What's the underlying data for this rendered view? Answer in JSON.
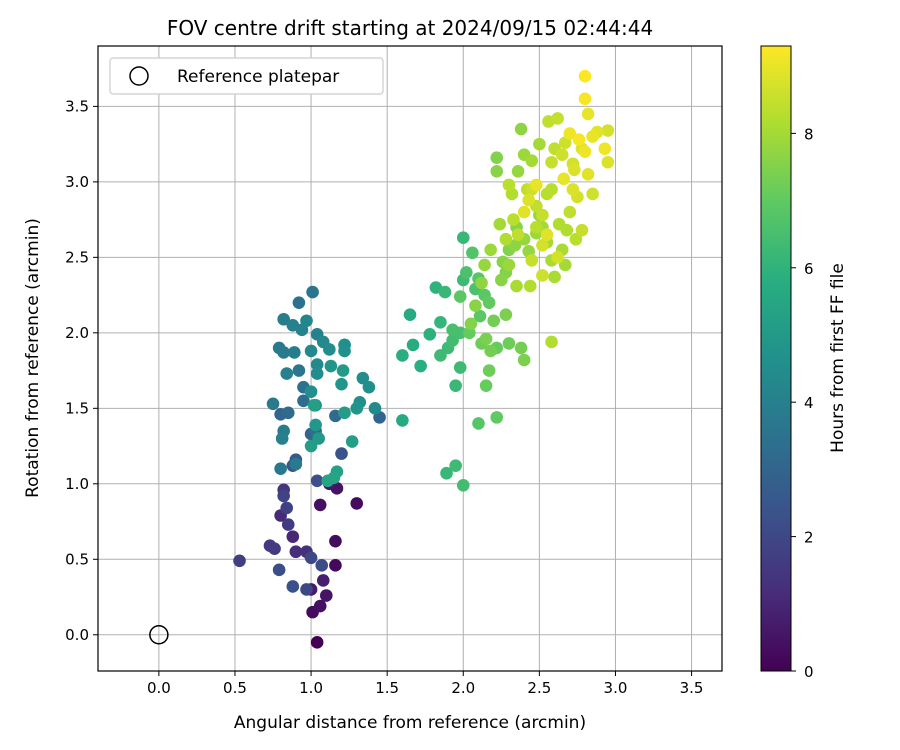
{
  "chart_data": {
    "type": "scatter",
    "title": "FOV centre drift starting at 2024/09/15 02:44:44",
    "xlabel": "Angular distance from reference (arcmin)",
    "ylabel": "Rotation from reference (arcmin)",
    "xlim": [
      -0.4,
      3.7
    ],
    "ylim": [
      -0.24,
      3.9
    ],
    "x_ticks": [
      0.0,
      0.5,
      1.0,
      1.5,
      2.0,
      2.5,
      3.0,
      3.5
    ],
    "x_tick_labels": [
      "0.0",
      "0.5",
      "1.0",
      "1.5",
      "2.0",
      "2.5",
      "3.0",
      "3.5"
    ],
    "y_ticks": [
      0.0,
      0.5,
      1.0,
      1.5,
      2.0,
      2.5,
      3.0,
      3.5
    ],
    "y_tick_labels": [
      "0.0",
      "0.5",
      "1.0",
      "1.5",
      "2.0",
      "2.5",
      "3.0",
      "3.5"
    ],
    "grid": true,
    "legend": {
      "position": "top-left",
      "entries": [
        "Reference platepar"
      ]
    },
    "reference_point": {
      "x": 0.0,
      "y": 0.0,
      "label": "Reference platepar"
    },
    "colorbar": {
      "label": "Hours from first FF file",
      "colormap": "viridis",
      "range": [
        0,
        9.3
      ],
      "ticks": [
        0,
        2,
        4,
        6,
        8
      ],
      "tick_labels": [
        "0",
        "2",
        "4",
        "6",
        "8"
      ]
    },
    "point_fields": [
      "x",
      "y",
      "hours"
    ],
    "points": [
      [
        1.04,
        -0.05,
        0.0
      ],
      [
        1.01,
        0.15,
        0.3
      ],
      [
        1.06,
        0.19,
        0.4
      ],
      [
        1.1,
        0.26,
        0.5
      ],
      [
        1.0,
        0.3,
        0.7
      ],
      [
        1.08,
        0.36,
        0.8
      ],
      [
        1.16,
        0.46,
        0.2
      ],
      [
        1.16,
        0.62,
        0.3
      ],
      [
        1.06,
        0.86,
        0.4
      ],
      [
        1.17,
        0.97,
        0.5
      ],
      [
        1.3,
        0.87,
        0.3
      ],
      [
        1.12,
        1.0,
        0.6
      ],
      [
        0.88,
        0.65,
        1.0
      ],
      [
        0.9,
        0.55,
        1.2
      ],
      [
        0.97,
        0.55,
        1.3
      ],
      [
        0.8,
        0.79,
        1.1
      ],
      [
        0.82,
        0.96,
        1.4
      ],
      [
        0.73,
        0.59,
        1.5
      ],
      [
        0.76,
        0.57,
        1.6
      ],
      [
        0.53,
        0.49,
        1.7
      ],
      [
        0.85,
        0.73,
        1.6
      ],
      [
        0.84,
        0.84,
        1.8
      ],
      [
        0.82,
        0.92,
        1.9
      ],
      [
        1.0,
        0.51,
        2.0
      ],
      [
        1.07,
        0.46,
        2.1
      ],
      [
        0.97,
        0.3,
        2.0
      ],
      [
        0.79,
        0.43,
        2.2
      ],
      [
        0.88,
        0.32,
        2.3
      ],
      [
        1.04,
        1.02,
        2.3
      ],
      [
        1.2,
        1.2,
        2.4
      ],
      [
        0.88,
        1.12,
        2.5
      ],
      [
        0.9,
        1.16,
        2.6
      ],
      [
        0.8,
        1.46,
        3.0
      ],
      [
        0.85,
        1.47,
        3.2
      ],
      [
        0.95,
        1.55,
        3.3
      ],
      [
        1.0,
        1.33,
        3.0
      ],
      [
        1.03,
        1.35,
        3.4
      ],
      [
        1.16,
        1.45,
        3.2
      ],
      [
        1.45,
        1.44,
        3.0
      ],
      [
        0.95,
        1.64,
        3.5
      ],
      [
        0.92,
        1.75,
        3.6
      ],
      [
        0.79,
        1.9,
        3.7
      ],
      [
        0.82,
        1.87,
        3.8
      ],
      [
        0.89,
        1.87,
        3.9
      ],
      [
        0.82,
        2.09,
        3.9
      ],
      [
        0.92,
        2.2,
        3.5
      ],
      [
        1.01,
        2.27,
        3.6
      ],
      [
        0.88,
        2.05,
        4.0
      ],
      [
        0.94,
        2.02,
        4.1
      ],
      [
        0.97,
        2.08,
        4.2
      ],
      [
        1.04,
        1.99,
        4.0
      ],
      [
        1.08,
        1.94,
        4.3
      ],
      [
        1.0,
        1.88,
        4.3
      ],
      [
        1.04,
        1.79,
        4.4
      ],
      [
        1.04,
        1.73,
        4.5
      ],
      [
        1.12,
        1.89,
        4.5
      ],
      [
        1.22,
        1.92,
        4.6
      ],
      [
        1.22,
        1.88,
        4.7
      ],
      [
        0.84,
        1.73,
        4.0
      ],
      [
        1.0,
        1.61,
        4.6
      ],
      [
        1.03,
        1.52,
        4.7
      ],
      [
        0.75,
        1.53,
        3.8
      ],
      [
        0.82,
        1.35,
        3.9
      ],
      [
        0.81,
        1.3,
        4.0
      ],
      [
        0.8,
        1.1,
        3.7
      ],
      [
        0.9,
        1.13,
        3.8
      ],
      [
        1.03,
        1.39,
        4.9
      ],
      [
        1.05,
        1.3,
        5.0
      ],
      [
        1.0,
        1.25,
        5.1
      ],
      [
        1.02,
        1.52,
        5.2
      ],
      [
        1.2,
        1.66,
        4.8
      ],
      [
        1.21,
        1.75,
        5.0
      ],
      [
        1.34,
        1.7,
        4.5
      ],
      [
        1.38,
        1.64,
        4.6
      ],
      [
        1.42,
        1.5,
        4.4
      ],
      [
        1.32,
        1.54,
        4.6
      ],
      [
        1.3,
        1.5,
        4.8
      ],
      [
        1.22,
        1.47,
        5.1
      ],
      [
        1.27,
        1.28,
        5.2
      ],
      [
        1.17,
        1.08,
        5.3
      ],
      [
        1.11,
        1.02,
        5.4
      ],
      [
        1.15,
        1.04,
        5.4
      ],
      [
        1.6,
        1.42,
        5.6
      ],
      [
        1.6,
        1.85,
        5.8
      ],
      [
        1.65,
        2.12,
        5.6
      ],
      [
        1.67,
        1.92,
        5.7
      ],
      [
        1.72,
        1.78,
        5.8
      ],
      [
        1.78,
        1.99,
        5.9
      ],
      [
        1.82,
        2.3,
        6.0
      ],
      [
        1.85,
        2.07,
        6.1
      ],
      [
        1.88,
        2.27,
        6.2
      ],
      [
        1.85,
        1.85,
        6.3
      ],
      [
        1.9,
        1.9,
        6.3
      ],
      [
        1.93,
        1.95,
        6.4
      ],
      [
        1.93,
        2.02,
        6.5
      ],
      [
        1.98,
        2.0,
        6.5
      ],
      [
        1.95,
        1.65,
        6.2
      ],
      [
        1.98,
        1.77,
        6.3
      ],
      [
        1.89,
        1.07,
        6.2
      ],
      [
        1.95,
        1.12,
        6.3
      ],
      [
        2.0,
        0.99,
        6.4
      ],
      [
        2.0,
        2.35,
        6.3
      ],
      [
        2.0,
        2.63,
        6.2
      ],
      [
        2.08,
        2.29,
        6.6
      ],
      [
        2.02,
        2.4,
        6.6
      ],
      [
        2.06,
        2.53,
        6.7
      ],
      [
        2.1,
        2.36,
        6.8
      ],
      [
        2.11,
        2.11,
        6.9
      ],
      [
        2.14,
        2.25,
        6.9
      ],
      [
        2.17,
        2.2,
        7.0
      ],
      [
        2.1,
        1.4,
        6.8
      ],
      [
        2.22,
        1.44,
        7.0
      ],
      [
        2.15,
        1.65,
        7.1
      ],
      [
        2.17,
        1.75,
        7.2
      ],
      [
        2.22,
        1.9,
        7.1
      ],
      [
        2.3,
        1.93,
        7.2
      ],
      [
        2.38,
        1.9,
        7.3
      ],
      [
        2.4,
        1.82,
        7.4
      ],
      [
        2.2,
        2.08,
        7.3
      ],
      [
        2.28,
        2.12,
        7.4
      ],
      [
        2.28,
        2.4,
        7.5
      ],
      [
        2.26,
        2.47,
        7.6
      ],
      [
        2.3,
        2.55,
        7.5
      ],
      [
        2.34,
        2.58,
        7.7
      ],
      [
        2.35,
        2.7,
        7.6
      ],
      [
        2.4,
        2.62,
        7.8
      ],
      [
        2.43,
        2.54,
        7.8
      ],
      [
        2.48,
        2.66,
        7.9
      ],
      [
        2.5,
        2.78,
        7.8
      ],
      [
        2.52,
        2.7,
        8.0
      ],
      [
        2.55,
        2.6,
        8.0
      ],
      [
        2.58,
        2.48,
        8.1
      ],
      [
        2.6,
        2.37,
        8.1
      ],
      [
        2.63,
        2.72,
        8.2
      ],
      [
        2.68,
        2.68,
        8.2
      ],
      [
        2.67,
        2.45,
        8.0
      ],
      [
        2.55,
        2.92,
        8.3
      ],
      [
        2.58,
        2.95,
        8.3
      ],
      [
        2.22,
        3.16,
        7.5
      ],
      [
        2.22,
        3.07,
        7.6
      ],
      [
        2.36,
        3.07,
        7.8
      ],
      [
        2.4,
        3.18,
        7.9
      ],
      [
        2.45,
        3.14,
        8.0
      ],
      [
        2.38,
        3.35,
        7.7
      ],
      [
        2.5,
        3.25,
        8.0
      ],
      [
        2.56,
        3.4,
        8.4
      ],
      [
        2.62,
        3.42,
        8.5
      ],
      [
        2.6,
        3.22,
        8.4
      ],
      [
        2.58,
        3.13,
        8.5
      ],
      [
        2.65,
        3.18,
        8.6
      ],
      [
        2.67,
        3.26,
        8.6
      ],
      [
        2.72,
        3.12,
        8.7
      ],
      [
        2.73,
        3.08,
        8.8
      ],
      [
        2.78,
        3.22,
        8.8
      ],
      [
        2.8,
        3.55,
        9.2
      ],
      [
        2.82,
        3.45,
        9.0
      ],
      [
        2.8,
        3.7,
        9.3
      ],
      [
        2.85,
        3.3,
        9.0
      ],
      [
        2.88,
        3.33,
        8.9
      ],
      [
        2.93,
        3.22,
        9.1
      ],
      [
        2.95,
        3.13,
        8.8
      ],
      [
        2.95,
        3.34,
        8.7
      ],
      [
        2.82,
        3.05,
        8.9
      ],
      [
        2.72,
        2.95,
        8.8
      ],
      [
        2.75,
        2.9,
        8.7
      ],
      [
        2.85,
        2.92,
        8.6
      ],
      [
        2.65,
        2.55,
        8.1
      ],
      [
        2.58,
        1.94,
        8.2
      ],
      [
        2.44,
        2.31,
        8.2
      ],
      [
        2.48,
        2.84,
        8.4
      ],
      [
        2.52,
        2.78,
        8.5
      ],
      [
        2.45,
        2.95,
        8.6
      ],
      [
        2.43,
        2.88,
        8.8
      ],
      [
        2.48,
        2.98,
        9.0
      ],
      [
        2.4,
        2.8,
        8.9
      ],
      [
        2.52,
        2.58,
        8.7
      ],
      [
        2.45,
        2.48,
        8.5
      ],
      [
        2.36,
        2.65,
        8.4
      ],
      [
        2.33,
        2.75,
        8.3
      ],
      [
        2.28,
        2.62,
        8.2
      ],
      [
        2.24,
        2.72,
        8.0
      ],
      [
        2.18,
        2.55,
        7.9
      ],
      [
        2.14,
        2.45,
        7.8
      ],
      [
        2.12,
        2.33,
        7.7
      ],
      [
        2.08,
        2.18,
        7.6
      ],
      [
        2.05,
        2.06,
        7.5
      ],
      [
        2.15,
        1.96,
        7.4
      ],
      [
        2.18,
        1.88,
        7.3
      ],
      [
        2.12,
        1.93,
        7.2
      ],
      [
        2.04,
        2.0,
        7.1
      ],
      [
        1.98,
        2.24,
        6.9
      ],
      [
        2.25,
        2.35,
        7.6
      ],
      [
        2.3,
        2.45,
        7.9
      ],
      [
        2.35,
        2.31,
        8.1
      ],
      [
        2.32,
        2.92,
        8.2
      ],
      [
        2.3,
        2.98,
        8.3
      ],
      [
        2.42,
        2.95,
        8.4
      ],
      [
        2.48,
        2.7,
        8.3
      ],
      [
        2.52,
        2.38,
        8.6
      ],
      [
        2.55,
        2.65,
        8.9
      ],
      [
        2.62,
        2.5,
        8.7
      ],
      [
        2.7,
        2.8,
        8.4
      ],
      [
        2.74,
        2.62,
        8.3
      ],
      [
        2.78,
        2.68,
        8.5
      ],
      [
        2.66,
        3.02,
        9.0
      ],
      [
        2.7,
        3.32,
        9.1
      ],
      [
        2.76,
        3.28,
        9.2
      ],
      [
        2.8,
        3.2,
        9.1
      ],
      [
        1.22,
        1.92,
        4.4
      ],
      [
        1.13,
        1.78,
        4.8
      ]
    ]
  }
}
